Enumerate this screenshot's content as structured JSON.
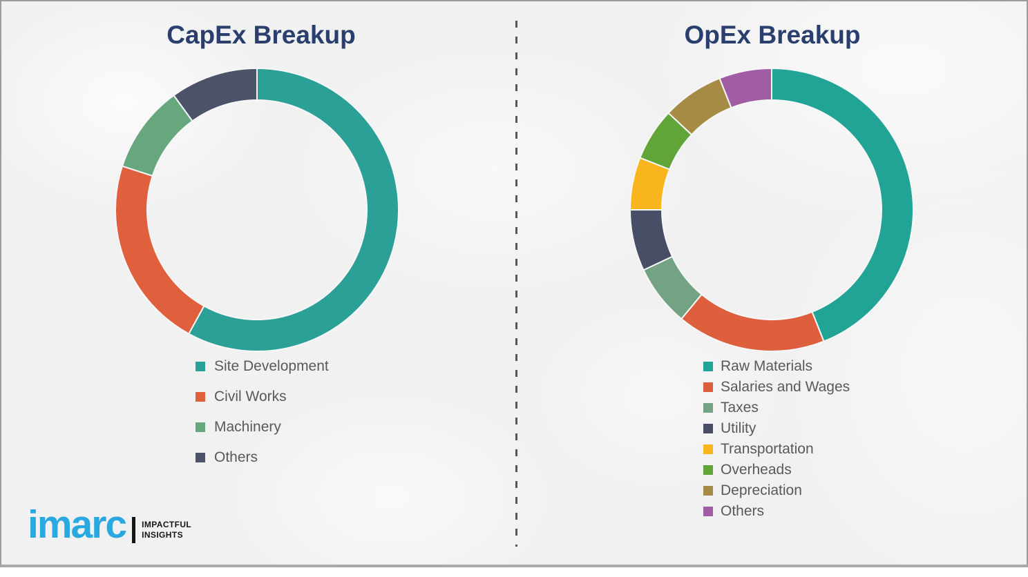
{
  "chart_data": [
    {
      "type": "pie",
      "donut": true,
      "title": "CapEx Breakup",
      "categories": [
        "Site Development",
        "Civil Works",
        "Machinery",
        "Others"
      ],
      "values": [
        58,
        22,
        10,
        10
      ],
      "colors": [
        "#2aa096",
        "#e0603e",
        "#67a77e",
        "#4c5268"
      ],
      "start_angle_deg": 0,
      "direction": "clockwise",
      "legend_position": "below-left"
    },
    {
      "type": "pie",
      "donut": true,
      "title": "OpEx Breakup",
      "categories": [
        "Raw Materials",
        "Salaries and Wages",
        "Taxes",
        "Utility",
        "Transportation",
        "Overheads",
        "Depreciation",
        "Others"
      ],
      "values": [
        44,
        17,
        7,
        7,
        6,
        6,
        7,
        6
      ],
      "colors": [
        "#21a496",
        "#dd5f3d",
        "#74a383",
        "#474e66",
        "#f8b51e",
        "#61a437",
        "#a68b44",
        "#a05da4"
      ],
      "start_angle_deg": 0,
      "direction": "clockwise",
      "legend_position": "below-left"
    }
  ],
  "logo": {
    "brand": "imarc",
    "tagline_line1": "IMPACTFUL",
    "tagline_line2": "INSIGHTS",
    "brand_color": "#29a9e0"
  }
}
